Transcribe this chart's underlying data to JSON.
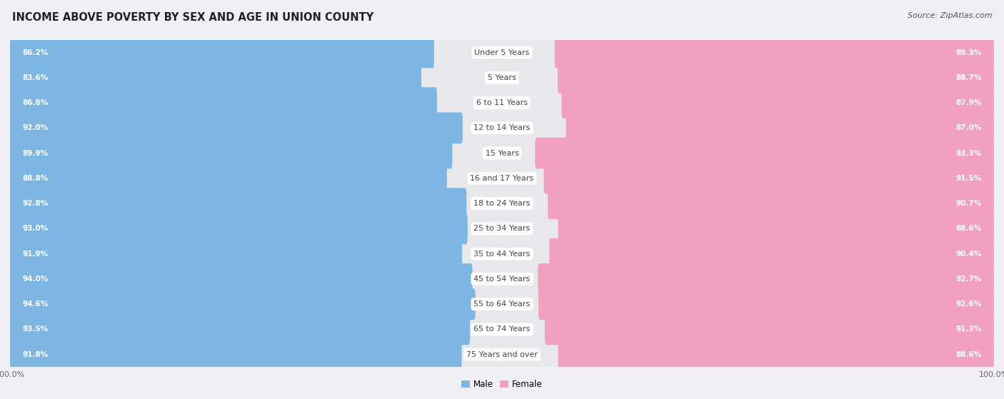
{
  "title": "INCOME ABOVE POVERTY BY SEX AND AGE IN UNION COUNTY",
  "source": "Source: ZipAtlas.com",
  "categories": [
    "Under 5 Years",
    "5 Years",
    "6 to 11 Years",
    "12 to 14 Years",
    "15 Years",
    "16 and 17 Years",
    "18 to 24 Years",
    "25 to 34 Years",
    "35 to 44 Years",
    "45 to 54 Years",
    "55 to 64 Years",
    "65 to 74 Years",
    "75 Years and over"
  ],
  "male_values": [
    86.2,
    83.6,
    86.8,
    92.0,
    89.9,
    88.8,
    92.8,
    93.0,
    91.9,
    94.0,
    94.6,
    93.5,
    91.8
  ],
  "female_values": [
    89.3,
    88.7,
    87.9,
    87.0,
    93.3,
    91.5,
    90.7,
    88.6,
    90.4,
    92.7,
    92.6,
    91.3,
    88.6
  ],
  "male_color": "#7EB6E3",
  "female_color": "#F2A0C0",
  "female_color_bright": "#EE6FA0",
  "track_color": "#E8E8EC",
  "bg_color": "#f0f0f4",
  "white": "#ffffff",
  "axis_max": 100.0,
  "legend_male": "Male",
  "legend_female": "Female",
  "title_fontsize": 10.5,
  "source_fontsize": 8,
  "label_fontsize": 8,
  "category_fontsize": 8,
  "value_fontsize": 7.5
}
